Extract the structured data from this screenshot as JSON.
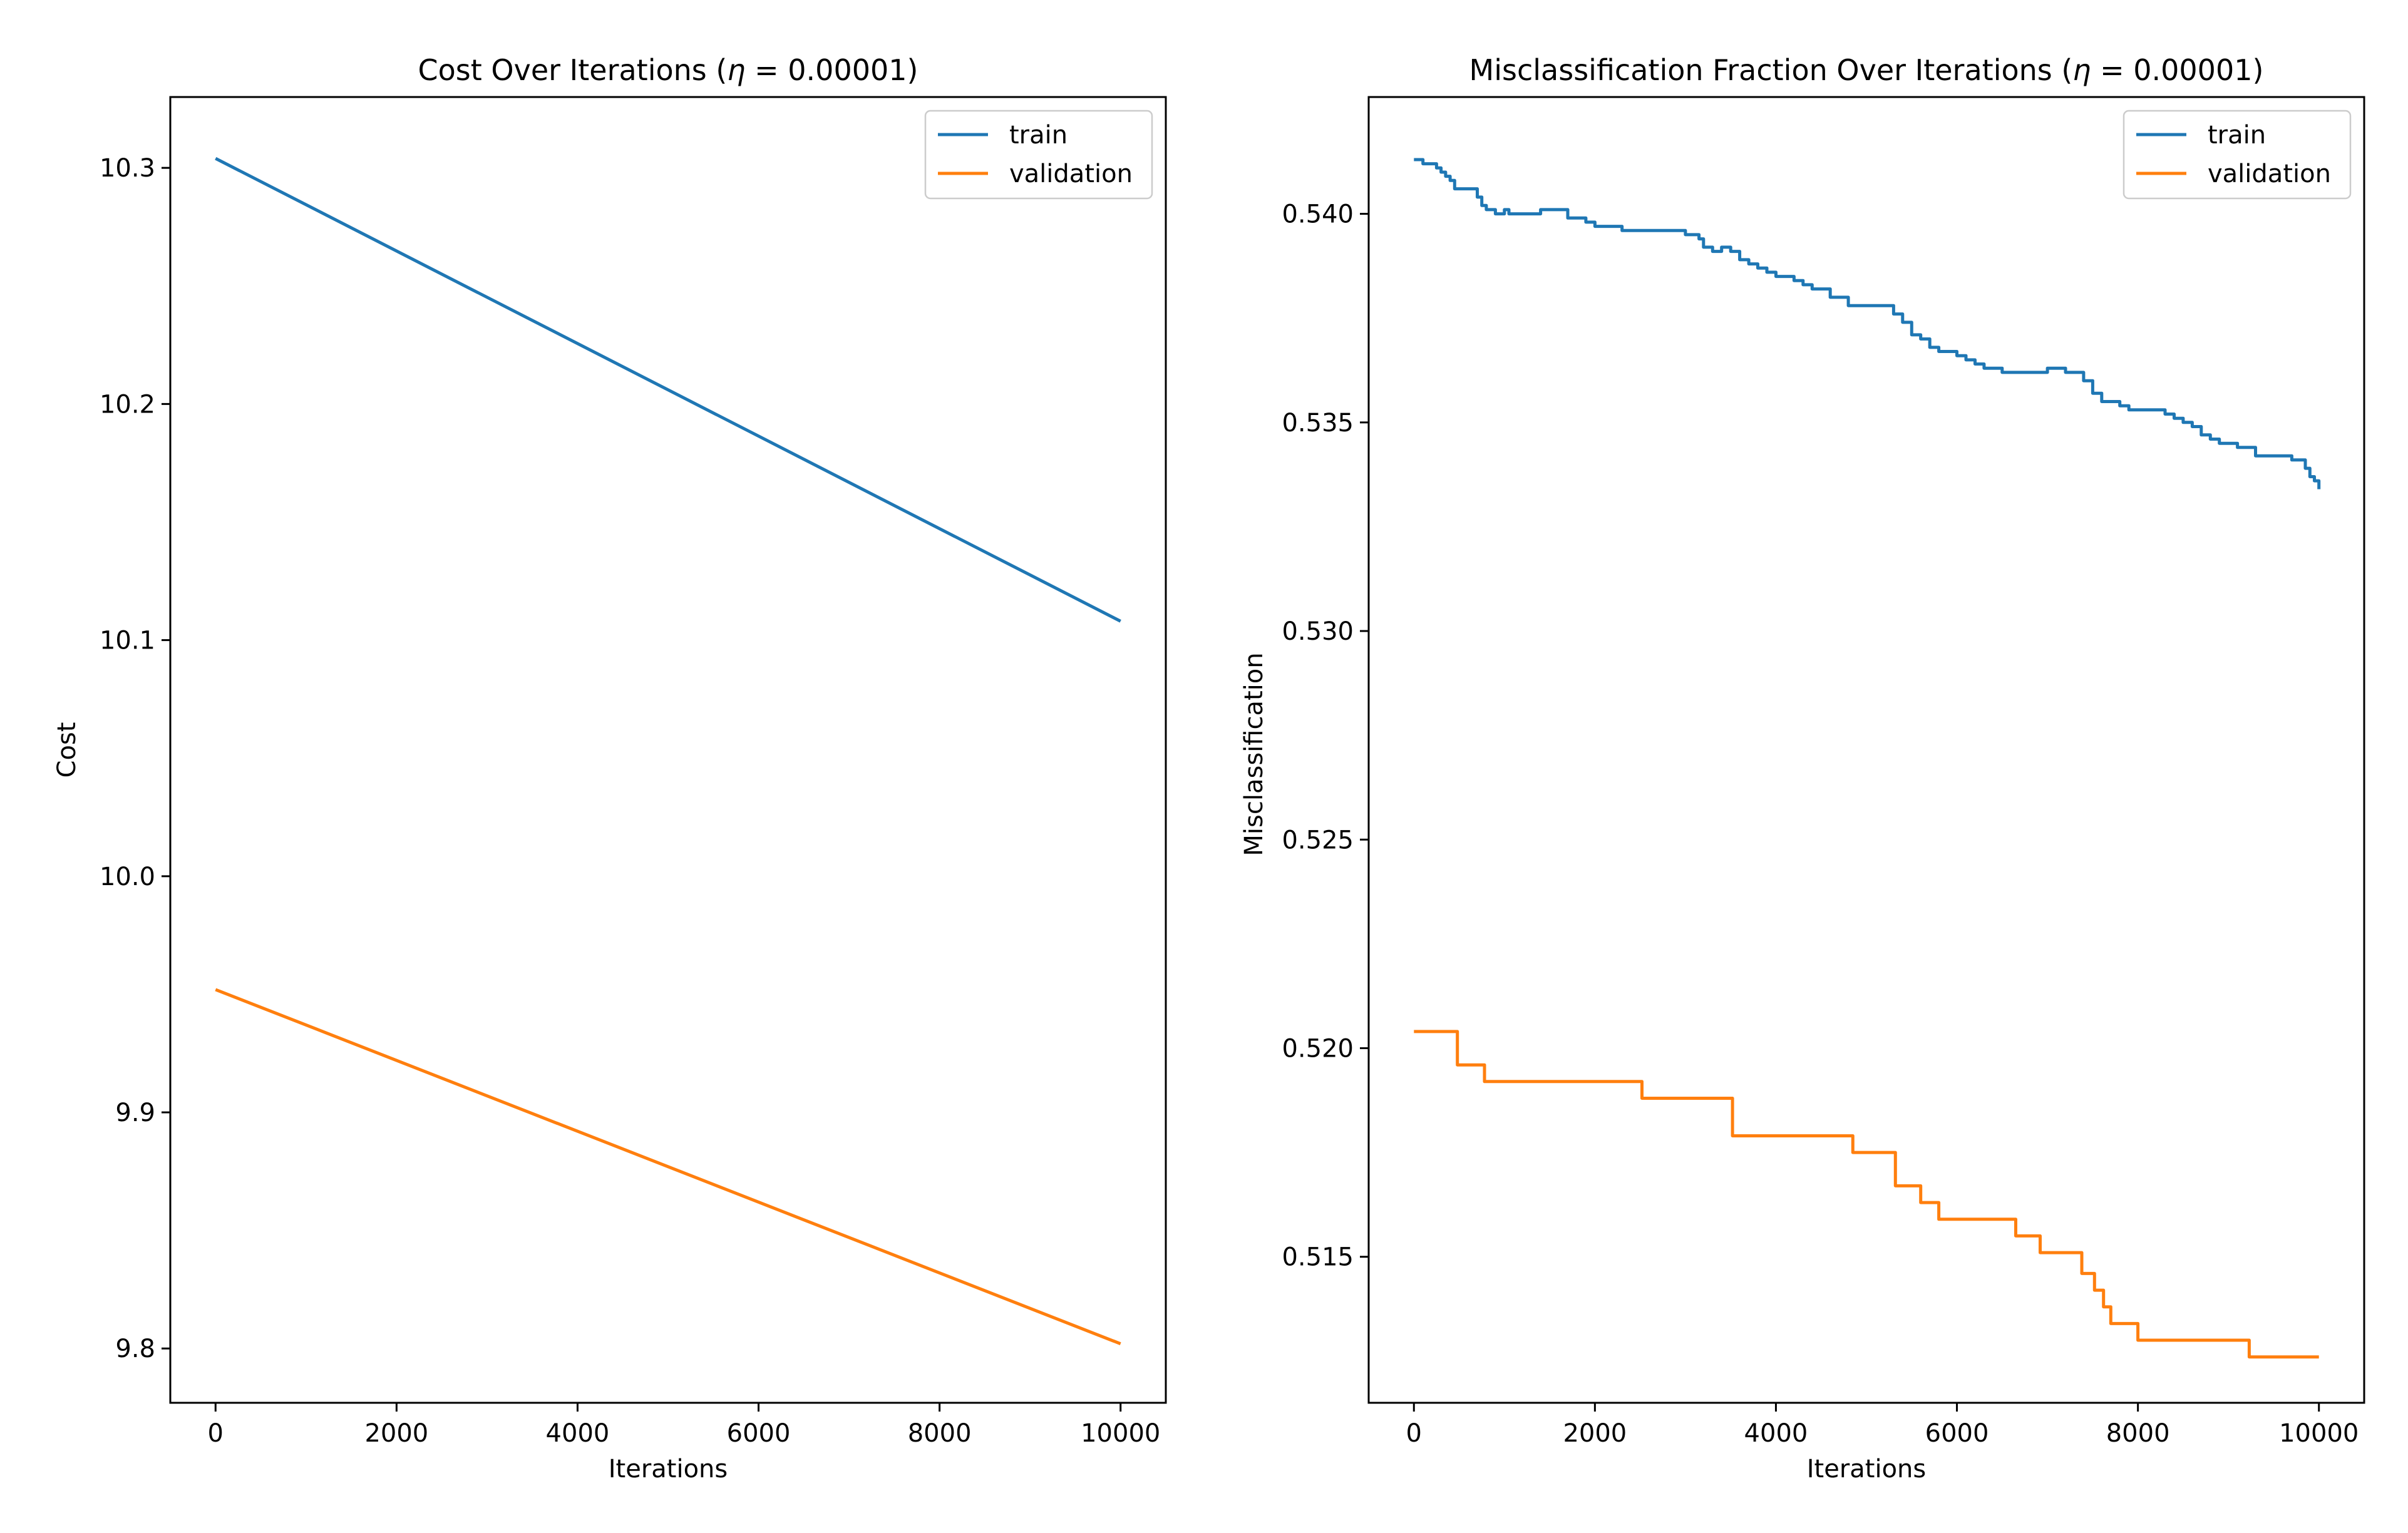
{
  "colors": {
    "train": "#1f77b4",
    "validation": "#ff7f0e"
  },
  "chart_data": [
    {
      "type": "line",
      "title_text": "Cost Over Iterations (",
      "title_eta": "η",
      "title_rest": " = 0.00001)",
      "xlabel": "Iterations",
      "ylabel": "Cost",
      "xlim": [
        -500,
        10500
      ],
      "ylim": [
        9.777,
        10.33
      ],
      "xticks": [
        0,
        2000,
        4000,
        6000,
        8000,
        10000
      ],
      "xtick_labels": [
        "0",
        "2000",
        "4000",
        "6000",
        "8000",
        "10000"
      ],
      "yticks": [
        9.8,
        9.9,
        10.0,
        10.1,
        10.2,
        10.3
      ],
      "ytick_labels": [
        "9.8",
        "9.9",
        "10.0",
        "10.1",
        "10.2",
        "10.3"
      ],
      "legend": "top-right",
      "series": [
        {
          "name": "train",
          "x": [
            0,
            10000
          ],
          "y": [
            10.304,
            10.108
          ]
        },
        {
          "name": "validation",
          "x": [
            0,
            10000
          ],
          "y": [
            9.952,
            9.802
          ]
        }
      ]
    },
    {
      "type": "line",
      "title_text": "Misclassification Fraction Over Iterations (",
      "title_eta": "η",
      "title_rest": " = 0.00001)",
      "xlabel": "Iterations",
      "ylabel": "Misclassification",
      "xlim": [
        -500,
        10500
      ],
      "ylim": [
        0.5115,
        0.5428
      ],
      "xticks": [
        0,
        2000,
        4000,
        6000,
        8000,
        10000
      ],
      "xtick_labels": [
        "0",
        "2000",
        "4000",
        "6000",
        "8000",
        "10000"
      ],
      "yticks": [
        0.515,
        0.52,
        0.525,
        0.53,
        0.535,
        0.54
      ],
      "ytick_labels": [
        "0.515",
        "0.520",
        "0.525",
        "0.530",
        "0.535",
        "0.540"
      ],
      "legend": "top-right",
      "series": [
        {
          "name": "train",
          "step": true,
          "x": [
            0,
            100,
            250,
            300,
            350,
            400,
            450,
            600,
            700,
            750,
            800,
            900,
            1000,
            1050,
            1100,
            1400,
            1700,
            1900,
            2000,
            2100,
            2300,
            2900,
            3000,
            3100,
            3150,
            3200,
            3300,
            3400,
            3500,
            3600,
            3700,
            3800,
            3900,
            4000,
            4200,
            4300,
            4400,
            4600,
            4800,
            5200,
            5300,
            5400,
            5500,
            5600,
            5700,
            5800,
            6000,
            6100,
            6200,
            6300,
            6500,
            6600,
            7000,
            7200,
            7300,
            7400,
            7500,
            7600,
            7800,
            7900,
            8000,
            8100,
            8200,
            8300,
            8400,
            8500,
            8600,
            8700,
            8800,
            8900,
            9000,
            9100,
            9300,
            9500,
            9700,
            9800,
            9850,
            9900,
            9950,
            10000
          ],
          "y": [
            0.5413,
            0.5412,
            0.5411,
            0.541,
            0.5409,
            0.5408,
            0.5406,
            0.5406,
            0.5404,
            0.5402,
            0.5401,
            0.54,
            0.5401,
            0.54,
            0.54,
            0.5401,
            0.5399,
            0.5398,
            0.5397,
            0.5397,
            0.5396,
            0.5396,
            0.5395,
            0.5395,
            0.5394,
            0.5392,
            0.5391,
            0.5392,
            0.5391,
            0.5389,
            0.5388,
            0.5387,
            0.5386,
            0.5385,
            0.5384,
            0.5383,
            0.5382,
            0.538,
            0.5378,
            0.5378,
            0.5376,
            0.5374,
            0.5371,
            0.537,
            0.5368,
            0.5367,
            0.5366,
            0.5365,
            0.5364,
            0.5363,
            0.5362,
            0.5362,
            0.5363,
            0.5362,
            0.5362,
            0.536,
            0.5357,
            0.5355,
            0.5354,
            0.5353,
            0.5353,
            0.5353,
            0.5353,
            0.5352,
            0.5351,
            0.535,
            0.5349,
            0.5347,
            0.5346,
            0.5345,
            0.5345,
            0.5344,
            0.5342,
            0.5342,
            0.5341,
            0.5341,
            0.5339,
            0.5337,
            0.5336,
            0.5334
          ]
        },
        {
          "name": "validation",
          "step": true,
          "x": [
            0,
            480,
            780,
            2520,
            3500,
            3520,
            4850,
            5300,
            5320,
            5600,
            5800,
            6650,
            6920,
            7380,
            7520,
            7620,
            7700,
            8000,
            9230,
            10000
          ],
          "y": [
            0.5204,
            0.5196,
            0.5192,
            0.5188,
            0.5188,
            0.5179,
            0.5175,
            0.5175,
            0.5167,
            0.5163,
            0.5159,
            0.5155,
            0.5151,
            0.5146,
            0.5142,
            0.5138,
            0.5134,
            0.513,
            0.5126,
            0.5126
          ]
        }
      ]
    }
  ]
}
